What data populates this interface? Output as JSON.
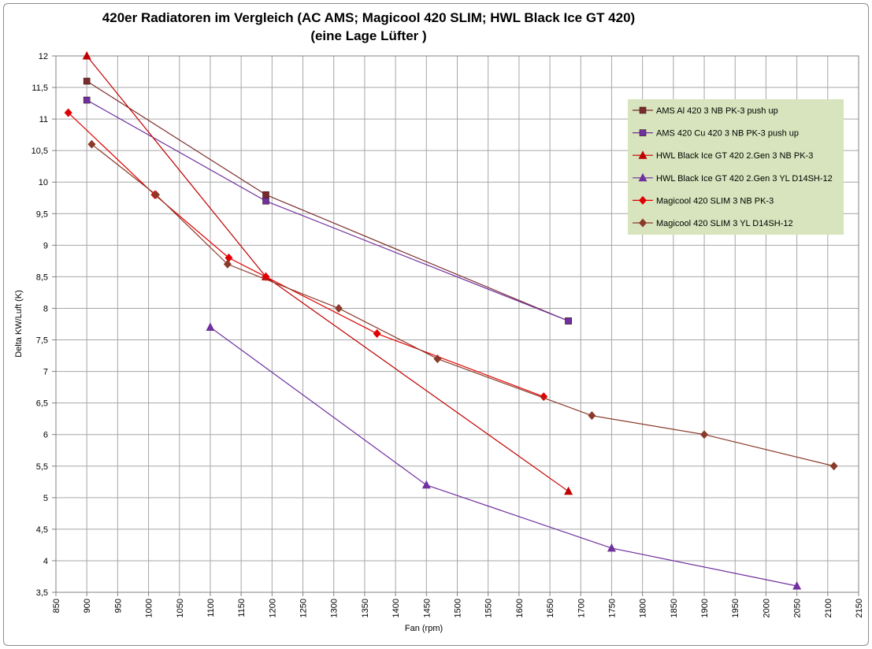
{
  "chart_data": {
    "type": "scatter",
    "title": "420er Radiatoren im Vergleich (AC AMS; Magicool 420 SLIM; HWL Black Ice GT 420)",
    "subtitle": "(eine Lage Lüfter )",
    "xlabel": "Fan (rpm)",
    "ylabel": "Delta KW/Luft (K)",
    "xlim": [
      850,
      2150
    ],
    "ylim": [
      3.5,
      12
    ],
    "xticks": [
      "850",
      "900",
      "950",
      "1000",
      "1050",
      "1100",
      "1150",
      "1200",
      "1250",
      "1300",
      "1350",
      "1400",
      "1450",
      "1500",
      "1550",
      "1600",
      "1650",
      "1700",
      "1750",
      "1800",
      "1850",
      "1900",
      "1950",
      "2000",
      "2050",
      "2100",
      "2150"
    ],
    "yticks": [
      "3,5",
      "4",
      "4,5",
      "5",
      "5,5",
      "6",
      "6,5",
      "7",
      "7,5",
      "8",
      "8,5",
      "9",
      "9,5",
      "10",
      "10,5",
      "11",
      "11,5",
      "12"
    ],
    "grid": true,
    "legend_position": "top-right",
    "series": [
      {
        "name": "AMS Al 420 3 NB PK-3 push up",
        "color": "#7b2b2b",
        "marker": "square",
        "x": [
          900,
          1190,
          1680
        ],
        "y": [
          11.6,
          9.8,
          7.8
        ]
      },
      {
        "name": "AMS 420 Cu 420 3 NB PK-3 push up",
        "color": "#7030a0",
        "marker": "square",
        "x": [
          900,
          1190,
          1680
        ],
        "y": [
          11.3,
          9.7,
          7.8
        ]
      },
      {
        "name": "HWL Black Ice GT 420 2.Gen 3 NB PK-3",
        "color": "#c00000",
        "marker": "triangle",
        "x": [
          900,
          1190,
          1680
        ],
        "y": [
          12.0,
          8.5,
          5.1
        ]
      },
      {
        "name": "HWL Black Ice GT 420 2.Gen 3 YL D14SH-12",
        "color": "#7030a0",
        "marker": "triangle",
        "x": [
          1100,
          1450,
          1750,
          2050
        ],
        "y": [
          7.7,
          5.2,
          4.2,
          3.6
        ]
      },
      {
        "name": "Magicool 420 SLIM 3 NB PK-3",
        "color": "#e00000",
        "marker": "diamond",
        "x": [
          870,
          1010,
          1130,
          1190,
          1370,
          1640
        ],
        "y": [
          11.1,
          9.8,
          8.8,
          8.5,
          7.6,
          6.6
        ]
      },
      {
        "name": "Magicool 420 SLIM 3 YL D14SH-12",
        "color": "#8b3a2a",
        "marker": "diamond",
        "x": [
          908,
          1012,
          1128,
          1308,
          1468,
          1718,
          1900,
          2110
        ],
        "y": [
          10.6,
          9.8,
          8.7,
          8.0,
          7.2,
          6.3,
          6.0,
          5.5
        ]
      }
    ]
  },
  "colors": {
    "grid": "#a6a6a6",
    "axis": "#808080",
    "legend_bg": "#d7e4bd"
  }
}
